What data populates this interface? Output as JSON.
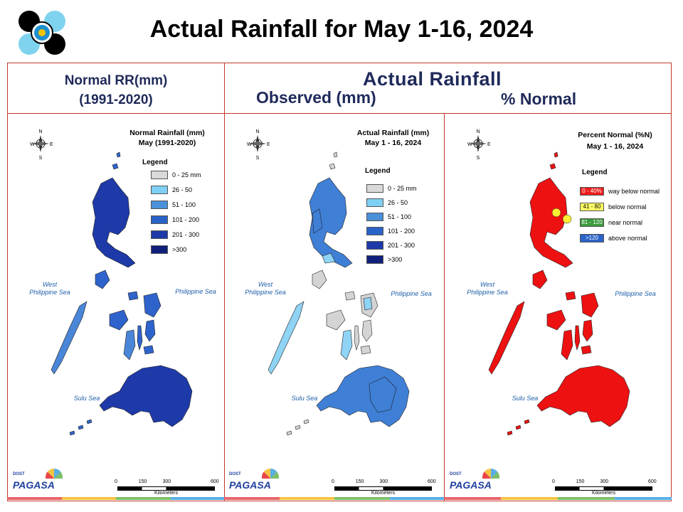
{
  "title": "Actual Rainfall for May 1-16, 2024",
  "header": {
    "left_line1": "Normal RR(mm)",
    "left_line2": "(1991-2020)",
    "center_title": "Actual Rainfall",
    "observed": "Observed (mm)",
    "percent": "% Normal"
  },
  "common": {
    "legend_label": "Legend",
    "sea_west_line1": "West",
    "sea_west_line2": "Philippine Sea",
    "sea_east": "Philippine Sea",
    "sea_sulu": "Sulu Sea",
    "scale_ticks": [
      "0",
      "150",
      "300",
      "600"
    ],
    "scale_unit": "Kilometers",
    "compass_n": "N",
    "compass_s": "S",
    "compass_e": "E",
    "compass_w": "W",
    "logo_top": "DOST",
    "logo_name": "PAGASA"
  },
  "panels": [
    {
      "map_title_line1": "Normal Rainfall (mm)",
      "map_title_line2": "May (1991-2020)",
      "legend": [
        {
          "label": "0 - 25 mm",
          "color": "#d9d9d9",
          "inner": ""
        },
        {
          "label": "26 - 50",
          "color": "#7fd0f5",
          "inner": ""
        },
        {
          "label": "51 - 100",
          "color": "#4a90d9",
          "inner": ""
        },
        {
          "label": "101 - 200",
          "color": "#2a63c8",
          "inner": ""
        },
        {
          "label": "201 - 300",
          "color": "#1e3aa8",
          "inner": ""
        },
        {
          "label": ">300",
          "color": "#10207a",
          "inner": ""
        }
      ],
      "fill_main": "#2f63cc",
      "fill_dark": "#1e3aa8",
      "fill_light": "#4a86d8"
    },
    {
      "map_title_line1": "Actual Rainfall (mm)",
      "map_title_line2": "May 1 - 16, 2024",
      "legend": [
        {
          "label": "0 - 25 mm",
          "color": "#d9d9d9",
          "inner": ""
        },
        {
          "label": "26 - 50",
          "color": "#7fd0f5",
          "inner": ""
        },
        {
          "label": "51 - 100",
          "color": "#4a90d9",
          "inner": ""
        },
        {
          "label": "101 - 200",
          "color": "#2a63c8",
          "inner": ""
        },
        {
          "label": "201 - 300",
          "color": "#1e3aa8",
          "inner": ""
        },
        {
          "label": ">300",
          "color": "#10207a",
          "inner": ""
        }
      ],
      "fill_main": "#d4d4d4",
      "fill_dark": "#3f7fd6",
      "fill_light": "#8fd3f5"
    },
    {
      "map_title_line1": "Percent Normal (%N)",
      "map_title_line2": "May 1 - 16, 2024",
      "legend": [
        {
          "label": "way below normal",
          "color": "#ee1c1c",
          "inner": "0 - 40%"
        },
        {
          "label": "below normal",
          "color": "#ffff66",
          "inner": "41 - 80"
        },
        {
          "label": "near normal",
          "color": "#3c9a3c",
          "inner": "81 - 120"
        },
        {
          "label": "above normal",
          "color": "#2a63c8",
          "inner": ">120"
        }
      ],
      "fill_main": "#ee1111",
      "fill_dark": "#d40000",
      "fill_light": "#f03030"
    }
  ]
}
